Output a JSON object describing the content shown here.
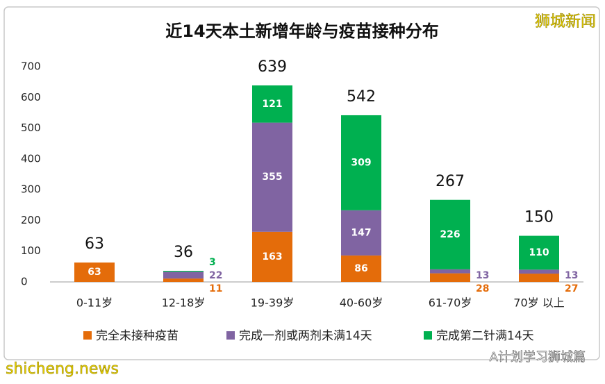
{
  "chart_data": {
    "type": "stacked_bar",
    "title": "近14天本土新增年龄与疫苗接种分布",
    "categories": [
      "0-11岁",
      "12-18岁",
      "19-39岁",
      "40-60岁",
      "61-70岁",
      "70岁 以上"
    ],
    "series": [
      {
        "name": "完全未接种疫苗",
        "color": "#e46c0a",
        "values": [
          63,
          11,
          163,
          86,
          28,
          27
        ]
      },
      {
        "name": "完成一剂或两剂未满14天",
        "color": "#8064a2",
        "values": [
          0,
          22,
          355,
          147,
          13,
          13
        ]
      },
      {
        "name": "完成第二针满14天",
        "color": "#00b050",
        "values": [
          0,
          3,
          121,
          309,
          226,
          110
        ]
      }
    ],
    "totals": [
      63,
      36,
      639,
      542,
      267,
      150
    ],
    "ylim": [
      0,
      700
    ],
    "yticks": [
      0,
      100,
      200,
      300,
      400,
      500,
      600,
      700
    ],
    "grid": false,
    "legend": "bottom",
    "watermarks": [
      "狮城新闻",
      "shicheng.news",
      "A计划学习狮城篇"
    ]
  }
}
